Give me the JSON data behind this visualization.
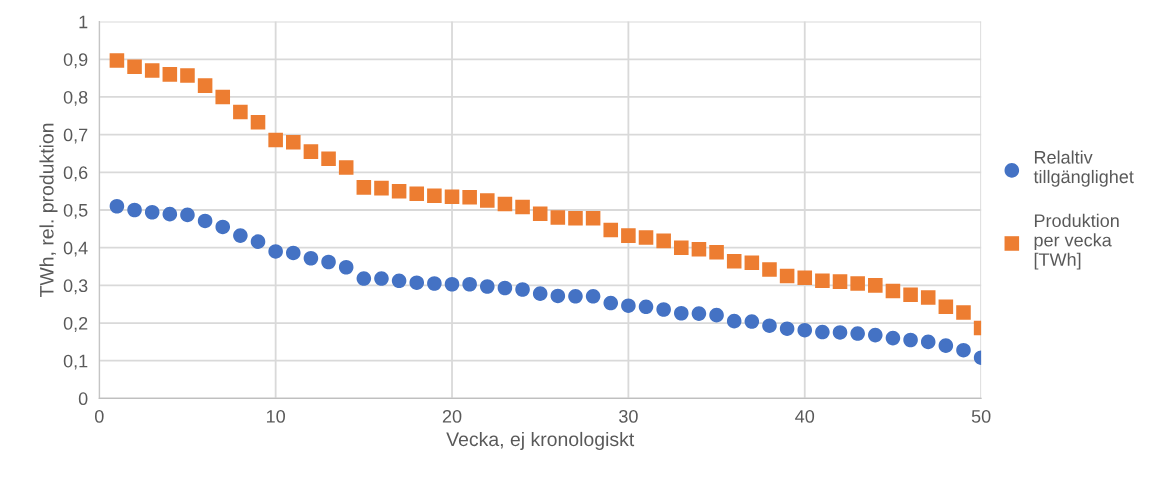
{
  "chart_data": {
    "type": "scatter",
    "xlabel": "Vecka, ej kronologiskt",
    "ylabel": "TWh, rel. produktion",
    "x": [
      1,
      2,
      3,
      4,
      5,
      6,
      7,
      8,
      9,
      10,
      11,
      12,
      13,
      14,
      15,
      16,
      17,
      18,
      19,
      20,
      21,
      22,
      23,
      24,
      25,
      26,
      27,
      28,
      29,
      30,
      31,
      32,
      33,
      34,
      35,
      36,
      37,
      38,
      39,
      40,
      41,
      42,
      43,
      44,
      45,
      46,
      47,
      48,
      49,
      50
    ],
    "series": [
      {
        "name": "Relaltiv tillgänglighet",
        "color": "#4472c4",
        "marker": "circle",
        "values": [
          0.51,
          0.5,
          0.494,
          0.489,
          0.487,
          0.471,
          0.455,
          0.432,
          0.416,
          0.39,
          0.386,
          0.372,
          0.362,
          0.348,
          0.318,
          0.318,
          0.312,
          0.307,
          0.305,
          0.303,
          0.303,
          0.297,
          0.293,
          0.289,
          0.278,
          0.272,
          0.271,
          0.271,
          0.253,
          0.246,
          0.243,
          0.236,
          0.226,
          0.225,
          0.221,
          0.205,
          0.204,
          0.193,
          0.185,
          0.181,
          0.176,
          0.175,
          0.172,
          0.168,
          0.16,
          0.155,
          0.15,
          0.14,
          0.128,
          0.108
        ]
      },
      {
        "name": "Produktion per vecka [TWh]",
        "color": "#ed7d31",
        "marker": "square",
        "values": [
          0.897,
          0.88,
          0.87,
          0.86,
          0.857,
          0.83,
          0.8,
          0.76,
          0.733,
          0.686,
          0.68,
          0.655,
          0.636,
          0.613,
          0.56,
          0.558,
          0.55,
          0.543,
          0.538,
          0.535,
          0.534,
          0.525,
          0.516,
          0.508,
          0.49,
          0.48,
          0.478,
          0.478,
          0.447,
          0.432,
          0.427,
          0.418,
          0.4,
          0.396,
          0.388,
          0.364,
          0.36,
          0.342,
          0.325,
          0.32,
          0.312,
          0.31,
          0.305,
          0.3,
          0.285,
          0.275,
          0.268,
          0.243,
          0.228,
          0.187
        ]
      }
    ],
    "xlim": [
      0,
      50
    ],
    "xticks": [
      0,
      10,
      20,
      30,
      40,
      50
    ],
    "ylim": [
      0,
      1
    ],
    "yticks": [
      0,
      {
        "value": 0.1,
        "label": "0,1"
      },
      {
        "value": 0.2,
        "label": "0,2"
      },
      {
        "value": 0.3,
        "label": "0,3"
      },
      {
        "value": 0.4,
        "label": "0,4"
      },
      {
        "value": 0.5,
        "label": "0,5"
      },
      {
        "value": 0.6,
        "label": "0,6"
      },
      {
        "value": 0.7,
        "label": "0,7"
      },
      {
        "value": 0.8,
        "label": "0,8"
      },
      {
        "value": 0.9,
        "label": "0,9"
      },
      1
    ],
    "grid": true,
    "legend": "right"
  }
}
